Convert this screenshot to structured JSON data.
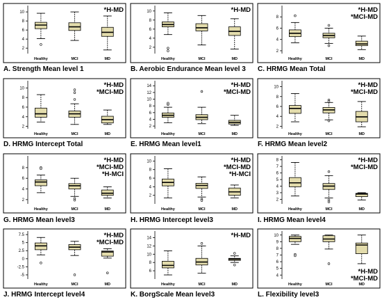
{
  "figure": {
    "categories": [
      "Healthy",
      "MCI",
      "MD"
    ],
    "colors": {
      "box_fill": "#e3dcac",
      "box_stroke": "#000000",
      "frame": "#000000"
    }
  },
  "chart_data": [
    {
      "type": "boxplot",
      "caption": "A. Strength Mean level 1",
      "annotations": [
        "*H-MD"
      ],
      "yticks": [
        2.0,
        4.0,
        6.0,
        8.0,
        10.0
      ],
      "ylim": [
        0.8,
        11.4
      ],
      "series": [
        {
          "category": "Healthy",
          "min": 4.1,
          "q1": 6.3,
          "median": 7.1,
          "q3": 7.7,
          "max": 9.7,
          "outliers": [
            2.8
          ]
        },
        {
          "category": "MCI",
          "min": 3.7,
          "q1": 5.9,
          "median": 6.7,
          "q3": 7.6,
          "max": 10.0,
          "outliers": []
        },
        {
          "category": "MD",
          "min": 1.6,
          "q1": 4.6,
          "median": 5.5,
          "q3": 6.6,
          "max": 9.1,
          "outliers": []
        }
      ]
    },
    {
      "type": "boxplot",
      "caption": "B. Aerobic Endurance Mean level 3",
      "annotations": [
        "*H-MD"
      ],
      "yticks": [
        2.0,
        4.0,
        6.0,
        8.0,
        10.0
      ],
      "ylim": [
        0.6,
        11.2
      ],
      "series": [
        {
          "category": "Healthy",
          "min": 4.8,
          "q1": 6.5,
          "median": 7.0,
          "q3": 7.6,
          "max": 9.6,
          "outliers": [
            1.8,
            1.2
          ]
        },
        {
          "category": "MCI",
          "min": 2.5,
          "q1": 5.6,
          "median": 6.3,
          "q3": 7.2,
          "max": 9.0,
          "outliers": []
        },
        {
          "category": "MD",
          "min": 1.6,
          "q1": 4.6,
          "median": 5.5,
          "q3": 6.5,
          "max": 8.3,
          "outliers": []
        }
      ]
    },
    {
      "type": "boxplot",
      "caption": "C. HRMG Mean Total",
      "annotations": [
        "*H-MD",
        "*MCI-MD"
      ],
      "yticks": [
        2.0,
        4.0,
        6.0,
        8.0
      ],
      "ylim": [
        1.5,
        10.0
      ],
      "series": [
        {
          "category": "Healthy",
          "min": 3.4,
          "q1": 4.5,
          "median": 5.1,
          "q3": 5.7,
          "max": 7.0,
          "outliers": [
            8.2
          ]
        },
        {
          "category": "MCI",
          "min": 3.3,
          "q1": 4.3,
          "median": 4.7,
          "q3": 5.1,
          "max": 6.0,
          "outliers": [
            6.5,
            2.9
          ]
        },
        {
          "category": "MD",
          "min": 2.2,
          "q1": 2.9,
          "median": 3.2,
          "q3": 3.7,
          "max": 4.6,
          "outliers": []
        }
      ]
    },
    {
      "type": "boxplot",
      "caption": "D. HRMG Intercept Total",
      "annotations": [
        "*H-MD",
        "*MCI-MD"
      ],
      "yticks": [
        2.0,
        4.0,
        6.0,
        8.0,
        10.0
      ],
      "ylim": [
        1.5,
        11.5
      ],
      "series": [
        {
          "category": "Healthy",
          "min": 2.9,
          "q1": 3.9,
          "median": 4.6,
          "q3": 5.8,
          "max": 8.6,
          "outliers": []
        },
        {
          "category": "MCI",
          "min": 2.4,
          "q1": 3.9,
          "median": 4.6,
          "q3": 5.2,
          "max": 6.7,
          "outliers": [
            9.6,
            9.0,
            7.6
          ]
        },
        {
          "category": "MD",
          "min": 2.4,
          "q1": 2.7,
          "median": 3.4,
          "q3": 4.1,
          "max": 5.4,
          "outliers": []
        }
      ]
    },
    {
      "type": "boxplot",
      "caption": "E. HRMG Mean level1",
      "annotations": [
        "*H-MD",
        "*MCI-MD"
      ],
      "yticks": [
        2.0,
        4.0,
        6.0,
        8.0,
        10.0,
        12.0,
        14.0
      ],
      "ylim": [
        1.2,
        15.5
      ],
      "series": [
        {
          "category": "Healthy",
          "min": 3.0,
          "q1": 4.6,
          "median": 5.2,
          "q3": 5.9,
          "max": 7.6,
          "outliers": [
            8.4,
            8.8
          ]
        },
        {
          "category": "MCI",
          "min": 2.7,
          "q1": 3.9,
          "median": 4.6,
          "q3": 5.4,
          "max": 7.6,
          "outliers": [
            12.3
          ]
        },
        {
          "category": "MD",
          "min": 2.2,
          "q1": 2.6,
          "median": 3.1,
          "q3": 3.7,
          "max": 5.2,
          "outliers": []
        }
      ]
    },
    {
      "type": "boxplot",
      "caption": "F. HRMG Mean level2",
      "annotations": [
        "*H-MD",
        "*MCI-MD"
      ],
      "yticks": [
        2.0,
        4.0,
        6.0,
        8.0,
        10.0
      ],
      "ylim": [
        1.5,
        11.2
      ],
      "series": [
        {
          "category": "Healthy",
          "min": 2.9,
          "q1": 4.6,
          "median": 5.6,
          "q3": 6.2,
          "max": 8.6,
          "outliers": []
        },
        {
          "category": "MCI",
          "min": 3.3,
          "q1": 4.7,
          "median": 5.3,
          "q3": 5.8,
          "max": 6.8,
          "outliers": [
            7.3,
            7.0,
            3.1
          ]
        },
        {
          "category": "MD",
          "min": 1.9,
          "q1": 2.9,
          "median": 3.9,
          "q3": 5.0,
          "max": 7.0,
          "outliers": []
        }
      ]
    },
    {
      "type": "boxplot",
      "caption": "G. HRMG Mean level3",
      "annotations": [
        "*H-MD",
        "*MCI-MD",
        "*H-MCI"
      ],
      "yticks": [
        2.0,
        4.0,
        6.0,
        8.0
      ],
      "ylim": [
        1.2,
        10.2
      ],
      "series": [
        {
          "category": "Healthy",
          "min": 3.3,
          "q1": 4.6,
          "median": 5.3,
          "q3": 5.7,
          "max": 6.6,
          "outliers": [
            8.0,
            7.8
          ]
        },
        {
          "category": "MCI",
          "min": 2.6,
          "q1": 4.0,
          "median": 4.6,
          "q3": 5.0,
          "max": 6.0,
          "outliers": [
            2.2,
            1.9
          ]
        },
        {
          "category": "MD",
          "min": 2.3,
          "q1": 2.8,
          "median": 3.2,
          "q3": 3.8,
          "max": 4.4,
          "outliers": []
        }
      ]
    },
    {
      "type": "boxplot",
      "caption": "H. HRMG Intercept level3",
      "annotations": [
        "*H-MD",
        "*MCI-MD",
        "*H-MCI"
      ],
      "yticks": [
        2.0,
        4.0,
        6.0,
        8.0,
        10.0
      ],
      "ylim": [
        0.0,
        11.2
      ],
      "series": [
        {
          "category": "Healthy",
          "min": 1.4,
          "q1": 4.2,
          "median": 5.0,
          "q3": 5.8,
          "max": 8.2,
          "outliers": []
        },
        {
          "category": "MCI",
          "min": 1.6,
          "q1": 3.6,
          "median": 4.3,
          "q3": 4.8,
          "max": 6.3,
          "outliers": [
            1.1,
            0.8
          ]
        },
        {
          "category": "MD",
          "min": 1.4,
          "q1": 2.0,
          "median": 2.8,
          "q3": 3.7,
          "max": 4.4,
          "outliers": []
        }
      ]
    },
    {
      "type": "boxplot",
      "caption": "I. HRMG Mean level4",
      "annotations": [
        "*H-MD",
        "*MCI-MD"
      ],
      "yticks": [
        2.0,
        3.0,
        4.0,
        5.0,
        6.0,
        7.0,
        8.0
      ],
      "ylim": [
        1.3,
        8.6
      ],
      "series": [
        {
          "category": "Healthy",
          "min": 2.5,
          "q1": 3.9,
          "median": 4.5,
          "q3": 5.3,
          "max": 7.6,
          "outliers": []
        },
        {
          "category": "MCI",
          "min": 2.2,
          "q1": 3.5,
          "median": 4.0,
          "q3": 4.4,
          "max": 5.6,
          "outliers": [
            6.2,
            1.9,
            1.6
          ]
        },
        {
          "category": "MD",
          "min": 1.9,
          "q1": 2.4,
          "median": 2.8,
          "q3": 2.9,
          "max": 3.0,
          "outliers": []
        }
      ]
    },
    {
      "type": "boxplot",
      "caption": "J. HRMG Intercept level4",
      "annotations": [
        "*H-MD",
        "*MCI-MD"
      ],
      "yticks": [
        -5.0,
        -2.5,
        0.0,
        2.5,
        5.0,
        7.5
      ],
      "ylim": [
        -6.3,
        8.6
      ],
      "series": [
        {
          "category": "Healthy",
          "min": 1.2,
          "q1": 2.8,
          "median": 4.0,
          "q3": 4.9,
          "max": 6.6,
          "outliers": [
            -1.3
          ]
        },
        {
          "category": "MCI",
          "min": 1.0,
          "q1": 2.8,
          "median": 3.6,
          "q3": 4.4,
          "max": 5.4,
          "outliers": [
            -5.0
          ]
        },
        {
          "category": "MD",
          "min": 0.2,
          "q1": 0.8,
          "median": 2.1,
          "q3": 2.4,
          "max": 3.1,
          "outliers": [
            -4.4
          ]
        }
      ]
    },
    {
      "type": "boxplot",
      "caption": "K. BorgScale Mean level3",
      "annotations": [
        "*H-MD"
      ],
      "yticks": [
        6.0,
        8.0,
        10.0,
        12.0,
        14.0
      ],
      "ylim": [
        4.0,
        15.6
      ],
      "series": [
        {
          "category": "Healthy",
          "min": 5.0,
          "q1": 6.7,
          "median": 7.3,
          "q3": 8.3,
          "max": 10.8,
          "outliers": []
        },
        {
          "category": "MCI",
          "min": 5.4,
          "q1": 7.4,
          "median": 8.1,
          "q3": 9.0,
          "max": 12.0,
          "outliers": [
            12.6
          ]
        },
        {
          "category": "MD",
          "min": 8.0,
          "q1": 8.5,
          "median": 8.8,
          "q3": 9.0,
          "max": 9.6,
          "outliers": [
            10.2,
            7.4
          ]
        }
      ]
    },
    {
      "type": "boxplot",
      "caption": "L. Flexibility level3",
      "annotations": [
        "*H-MD",
        "*MCI-MD"
      ],
      "yticks": [
        4.0,
        5.0,
        6.0,
        7.0,
        8.0,
        9.0,
        10.0
      ],
      "ylim": [
        3.4,
        10.6
      ],
      "series": [
        {
          "category": "Healthy",
          "min": 8.6,
          "q1": 9.0,
          "median": 9.5,
          "q3": 9.8,
          "max": 10.0,
          "outliers": [
            7.1,
            6.9
          ]
        },
        {
          "category": "MCI",
          "min": 7.9,
          "q1": 9.0,
          "median": 9.4,
          "q3": 9.9,
          "max": 10.0,
          "outliers": [
            5.7
          ]
        },
        {
          "category": "MD",
          "min": 5.7,
          "q1": 7.2,
          "median": 8.5,
          "q3": 8.8,
          "max": 10.0,
          "outliers": []
        }
      ]
    }
  ]
}
